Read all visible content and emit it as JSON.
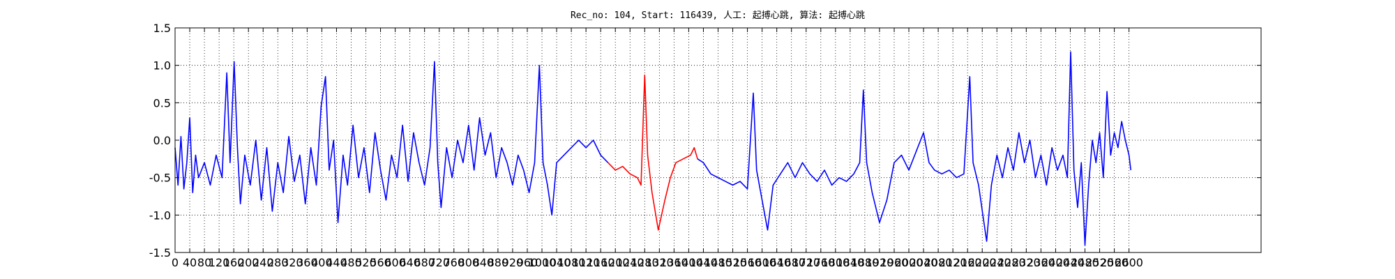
{
  "chart_data": {
    "type": "line",
    "title": "Rec_no: 104, Start: 116439, 人工: 起搏心跳, 算法: 起搏心跳",
    "xlim": [
      0,
      2960
    ],
    "ylim": [
      -1.5,
      1.5
    ],
    "xticks": [
      0,
      40,
      80,
      120,
      160,
      200,
      240,
      280,
      320,
      360,
      400,
      440,
      480,
      520,
      560,
      600,
      640,
      680,
      720,
      760,
      800,
      840,
      880,
      920,
      960,
      1000,
      1040,
      1080,
      1120,
      1160,
      1200,
      1240,
      1280,
      1320,
      1360,
      1400,
      1440,
      1480,
      1520,
      1560,
      1600,
      1640,
      1680,
      1720,
      1760,
      1800,
      1840,
      1880,
      1920,
      1960,
      2000,
      2040,
      2080,
      2120,
      2160,
      2200,
      2240,
      2280,
      2320,
      2360,
      2400,
      2440,
      2480,
      2520,
      2560,
      2600
    ],
    "yticks": [
      -1.5,
      {
        "value": -1.0,
        "label": "-1.0"
      },
      -0.5,
      {
        "value": 0.0,
        "label": "0.0"
      },
      0.5,
      {
        "value": 1.0,
        "label": "1.0"
      },
      1.5
    ],
    "grid": true,
    "series": [
      {
        "color": "#0000ff",
        "x": [
          0,
          8,
          16,
          24,
          32,
          40,
          48,
          56,
          64,
          80,
          96,
          112,
          128,
          141,
          150,
          161,
          170,
          178,
          190,
          205,
          220,
          235,
          250,
          265,
          280,
          295,
          310,
          325,
          340,
          355,
          370,
          385,
          398,
          410,
          420,
          432,
          444,
          458,
          470,
          485,
          500,
          515,
          530,
          545,
          560,
          575,
          590,
          605,
          620,
          635,
          650,
          665,
          680,
          695,
          707,
          716,
          725,
          740,
          755,
          770,
          785,
          800,
          815,
          830,
          845,
          860,
          875,
          890,
          905,
          920,
          935,
          950,
          965,
          980,
          993,
          1003,
          1015,
          1027,
          1040,
          1060,
          1080,
          1100,
          1120,
          1140,
          1160,
          1180
        ],
        "values": [
          -0.1,
          -0.6,
          0.05,
          -0.65,
          -0.3,
          0.3,
          -0.7,
          -0.2,
          -0.5,
          -0.3,
          -0.6,
          -0.2,
          -0.5,
          0.9,
          -0.3,
          1.05,
          -0.1,
          -0.85,
          -0.2,
          -0.6,
          0.0,
          -0.8,
          -0.1,
          -0.95,
          -0.3,
          -0.7,
          0.05,
          -0.55,
          -0.2,
          -0.85,
          -0.1,
          -0.6,
          0.45,
          0.85,
          -0.4,
          0.0,
          -1.1,
          -0.2,
          -0.6,
          0.2,
          -0.5,
          -0.1,
          -0.7,
          0.1,
          -0.4,
          -0.8,
          -0.2,
          -0.5,
          0.2,
          -0.55,
          0.1,
          -0.3,
          -0.6,
          -0.1,
          1.05,
          -0.3,
          -0.9,
          -0.1,
          -0.5,
          0.0,
          -0.3,
          0.2,
          -0.4,
          0.3,
          -0.2,
          0.1,
          -0.5,
          -0.1,
          -0.3,
          -0.6,
          -0.2,
          -0.4,
          -0.7,
          -0.3,
          1.0,
          -0.3,
          -0.6,
          -1.0,
          -0.3,
          -0.2,
          -0.1,
          0.0,
          -0.1,
          0.0,
          -0.2,
          -0.3
        ]
      },
      {
        "color": "#ff0000",
        "x": [
          1180,
          1200,
          1220,
          1240,
          1260,
          1270,
          1280,
          1288,
          1300,
          1317,
          1335,
          1350,
          1365,
          1385,
          1405,
          1415,
          1424
        ],
        "values": [
          -0.3,
          -0.4,
          -0.35,
          -0.45,
          -0.5,
          -0.6,
          0.87,
          -0.2,
          -0.7,
          -1.2,
          -0.8,
          -0.5,
          -0.3,
          -0.25,
          -0.2,
          -0.1,
          -0.25
        ]
      },
      {
        "color": "#0000ff",
        "x": [
          1424,
          1440,
          1460,
          1480,
          1500,
          1520,
          1540,
          1560,
          1576,
          1585,
          1600,
          1615,
          1630,
          1650,
          1670,
          1690,
          1710,
          1730,
          1750,
          1770,
          1790,
          1810,
          1830,
          1850,
          1866,
          1876,
          1885,
          1900,
          1920,
          1940,
          1960,
          1980,
          2000,
          2020,
          2040,
          2055,
          2070,
          2090,
          2110,
          2130,
          2150,
          2166,
          2175,
          2190,
          2212,
          2225,
          2240,
          2255,
          2270,
          2285,
          2300,
          2315,
          2330,
          2345,
          2360,
          2375,
          2390,
          2405,
          2420,
          2432,
          2441,
          2450,
          2460,
          2470,
          2480,
          2490,
          2500,
          2510,
          2520,
          2530,
          2540,
          2550,
          2560,
          2570,
          2580,
          2590,
          2600,
          2605
        ],
        "values": [
          -0.25,
          -0.3,
          -0.45,
          -0.5,
          -0.55,
          -0.6,
          -0.55,
          -0.65,
          0.63,
          -0.4,
          -0.8,
          -1.2,
          -0.6,
          -0.45,
          -0.3,
          -0.5,
          -0.3,
          -0.45,
          -0.55,
          -0.4,
          -0.6,
          -0.5,
          -0.55,
          -0.45,
          -0.3,
          0.67,
          -0.3,
          -0.7,
          -1.1,
          -0.8,
          -0.3,
          -0.2,
          -0.4,
          -0.15,
          0.1,
          -0.3,
          -0.4,
          -0.45,
          -0.4,
          -0.5,
          -0.45,
          0.85,
          -0.3,
          -0.6,
          -1.35,
          -0.6,
          -0.2,
          -0.5,
          -0.1,
          -0.4,
          0.1,
          -0.3,
          0.0,
          -0.5,
          -0.2,
          -0.6,
          -0.1,
          -0.4,
          -0.2,
          -0.5,
          1.18,
          -0.4,
          -0.9,
          -0.3,
          -1.4,
          -0.6,
          0.0,
          -0.3,
          0.1,
          -0.5,
          0.65,
          -0.2,
          0.1,
          -0.1,
          0.25,
          0.0,
          -0.2,
          -0.4
        ]
      }
    ]
  }
}
